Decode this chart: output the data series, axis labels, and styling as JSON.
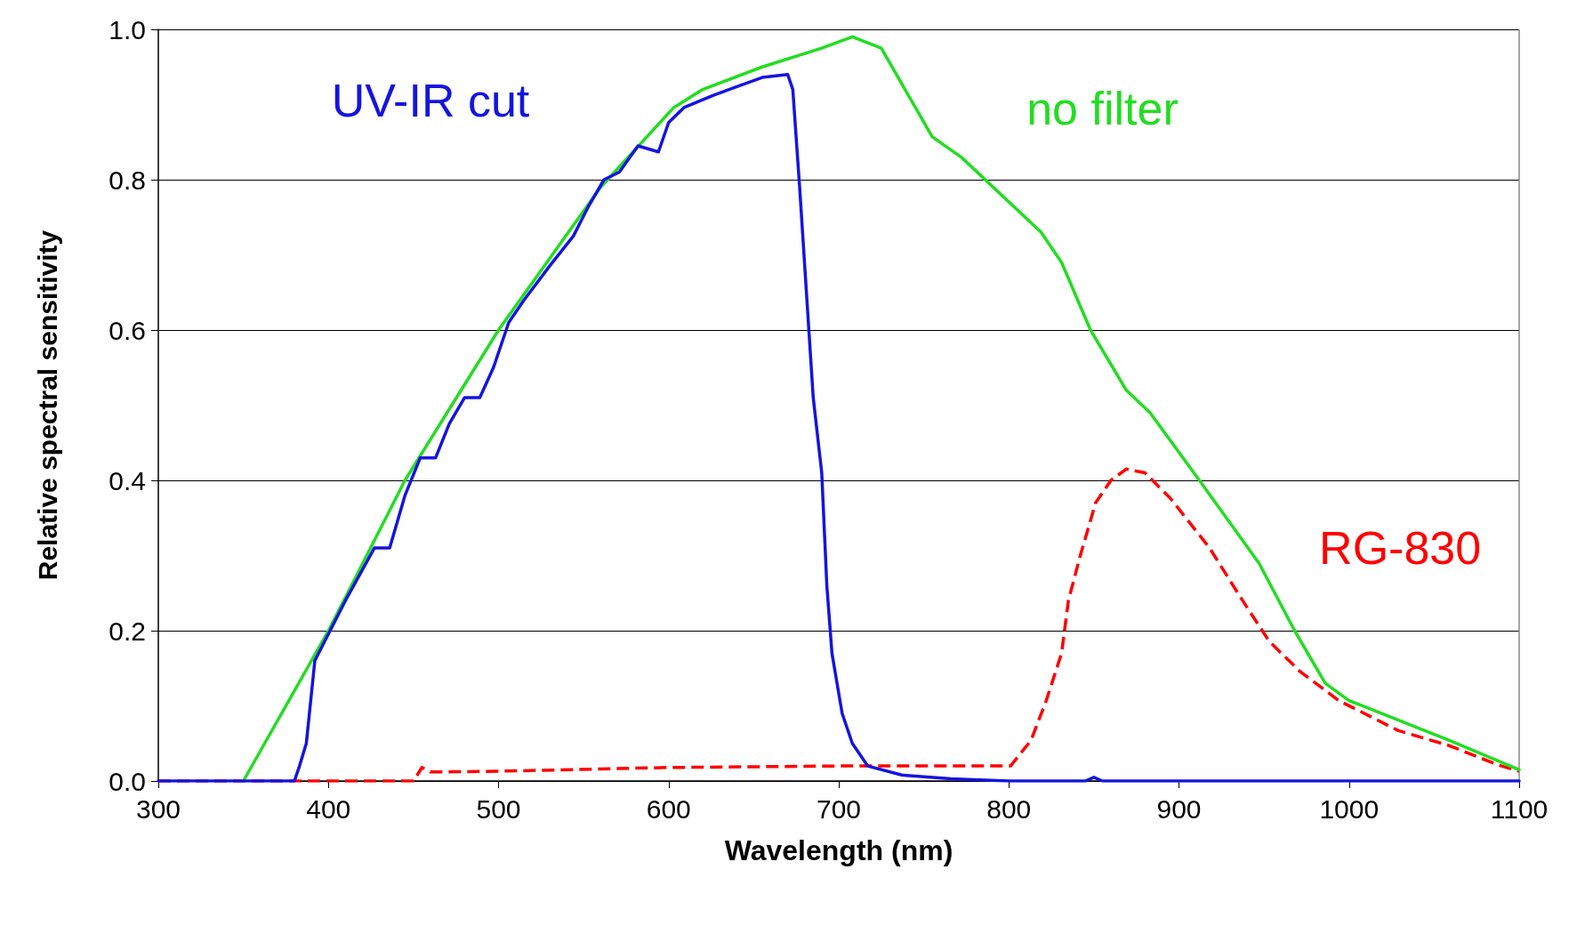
{
  "chart_data": {
    "type": "line",
    "xlabel": "Wavelength (nm)",
    "ylabel": "Relative spectral sensitivity",
    "xlim": [
      300,
      1100
    ],
    "xticks": [
      300,
      400,
      500,
      600,
      700,
      800,
      900,
      1000,
      1100
    ],
    "ylim": [
      0,
      1
    ],
    "yticks": [
      {
        "value": 0,
        "label": "0.0"
      },
      {
        "value": 0.2,
        "label": "0.2"
      },
      {
        "value": 0.4,
        "label": "0.4"
      },
      {
        "value": 0.6,
        "label": "0.6"
      },
      {
        "value": 0.8,
        "label": "0.8"
      },
      {
        "value": 1,
        "label": "1.0"
      }
    ],
    "grid": "y",
    "legend": false,
    "marker": "none",
    "series": [
      {
        "name": "UV-IR cut",
        "color": "#1414e0",
        "line_style": "solid",
        "x": [
          300,
          380,
          383,
          387,
          392,
          401,
          410,
          427,
          436,
          445,
          454,
          463,
          471,
          480,
          489,
          497,
          506,
          515,
          530,
          544,
          553,
          562,
          571,
          582,
          594,
          600,
          609,
          626,
          638,
          655,
          670,
          673,
          677,
          685,
          690,
          693,
          696,
          702,
          708,
          717,
          737,
          766,
          800,
          845,
          850,
          855,
          1100
        ],
        "values": [
          0,
          0,
          0.02,
          0.05,
          0.16,
          0.2,
          0.24,
          0.31,
          0.31,
          0.38,
          0.43,
          0.43,
          0.475,
          0.51,
          0.51,
          0.55,
          0.61,
          0.64,
          0.685,
          0.725,
          0.765,
          0.8,
          0.81,
          0.845,
          0.837,
          0.876,
          0.896,
          0.912,
          0.922,
          0.936,
          0.94,
          0.92,
          0.79,
          0.51,
          0.41,
          0.26,
          0.17,
          0.09,
          0.05,
          0.02,
          0.008,
          0.003,
          0,
          0,
          0.005,
          0,
          0
        ]
      },
      {
        "name": "no filter",
        "color": "#22dd22",
        "line_style": "solid",
        "x": [
          350,
          400,
          445,
          500,
          560,
          603,
          620,
          655,
          690,
          708,
          725,
          755,
          772,
          819,
          831,
          848,
          869,
          883,
          912,
          947,
          968,
          986,
          1000,
          1059,
          1100
        ],
        "values": [
          0,
          0.2,
          0.4,
          0.6,
          0.79,
          0.896,
          0.92,
          0.95,
          0.975,
          0.99,
          0.975,
          0.857,
          0.83,
          0.73,
          0.69,
          0.6,
          0.52,
          0.49,
          0.4,
          0.29,
          0.2,
          0.13,
          0.107,
          0.054,
          0.015
        ]
      },
      {
        "name": "RG-830",
        "color": "#ff0000",
        "line_style": "dashed",
        "x": [
          300,
          450,
          455,
          460,
          500,
          600,
          700,
          790,
          801,
          813,
          822,
          831,
          835,
          842,
          851,
          860,
          869,
          880,
          895,
          918,
          936,
          953,
          971,
          994,
          1029,
          1059,
          1088,
          1100
        ],
        "values": [
          0,
          0,
          0.018,
          0.012,
          0.013,
          0.018,
          0.02,
          0.02,
          0.02,
          0.054,
          0.107,
          0.17,
          0.24,
          0.3,
          0.37,
          0.4,
          0.415,
          0.41,
          0.376,
          0.31,
          0.245,
          0.186,
          0.146,
          0.107,
          0.067,
          0.047,
          0.021,
          0.013
        ]
      }
    ]
  }
}
